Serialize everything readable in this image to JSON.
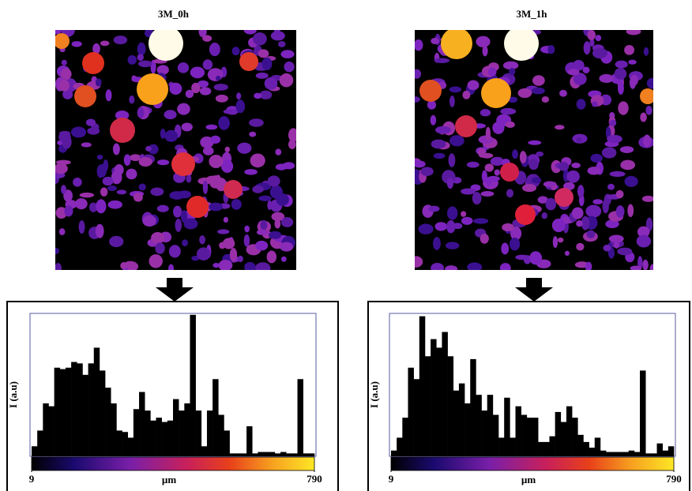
{
  "chart_data": [
    {
      "type": "histogram",
      "title": "3M_0h",
      "x_label": "µm",
      "y_label": "I (a.u)",
      "color": "#000000",
      "bins": [
        9,
        24.62,
        40.24,
        55.86,
        71.48,
        87.1,
        102.72,
        118.34,
        133.96,
        149.58,
        165.2,
        180.82,
        196.44,
        212.06,
        227.68,
        243.3,
        258.92,
        274.54,
        290.16,
        305.78,
        321.4,
        337.02,
        352.64,
        368.26,
        383.88,
        399.5,
        415.12,
        430.74,
        446.36,
        461.98,
        477.6,
        493.22,
        508.84,
        524.46,
        540.08,
        555.7,
        571.32,
        586.94,
        602.56,
        618.18,
        633.8,
        649.42,
        665.04,
        680.66,
        696.28,
        711.9,
        727.52,
        743.14,
        758.76,
        774.38,
        790
      ],
      "values": [
        7,
        18,
        37,
        35,
        62,
        61,
        62,
        66,
        65,
        57,
        65,
        76,
        60,
        48,
        37,
        18,
        17,
        13,
        33,
        45,
        32,
        25,
        27,
        24,
        25,
        40,
        32,
        37,
        99,
        32,
        7,
        32,
        54,
        29,
        18,
        2,
        2,
        2,
        21,
        2,
        3,
        3,
        3,
        2,
        3,
        2,
        2,
        54,
        2,
        2
      ],
      "xlim": [
        9,
        790
      ],
      "xticks": [
        9,
        790
      ],
      "ylim": [
        0,
        100
      ]
    },
    {
      "type": "histogram",
      "title": "3M_1h",
      "x_label": "µm",
      "y_label": "I (a.u)",
      "color": "#000000",
      "bins": [
        9,
        24.62,
        40.24,
        55.86,
        71.48,
        87.1,
        102.72,
        118.34,
        133.96,
        149.58,
        165.2,
        180.82,
        196.44,
        212.06,
        227.68,
        243.3,
        258.92,
        274.54,
        290.16,
        305.78,
        321.4,
        337.02,
        352.64,
        368.26,
        383.88,
        399.5,
        415.12,
        430.74,
        446.36,
        461.98,
        477.6,
        493.22,
        508.84,
        524.46,
        540.08,
        555.7,
        571.32,
        586.94,
        602.56,
        618.18,
        633.8,
        649.42,
        665.04,
        680.66,
        696.28,
        711.9,
        727.52,
        743.14,
        758.76,
        774.38,
        790
      ],
      "values": [
        4,
        13,
        27,
        62,
        54,
        98,
        70,
        82,
        76,
        87,
        70,
        46,
        51,
        37,
        68,
        43,
        32,
        43,
        29,
        13,
        41,
        13,
        35,
        29,
        27,
        27,
        10,
        10,
        14,
        31,
        24,
        35,
        27,
        15,
        10,
        6,
        13,
        4,
        3,
        3,
        3,
        3,
        4,
        3,
        60,
        2,
        2,
        9,
        4,
        7
      ],
      "xlim": [
        9,
        790
      ],
      "xticks": [
        9,
        790
      ],
      "ylim": [
        0,
        100
      ]
    }
  ]
}
